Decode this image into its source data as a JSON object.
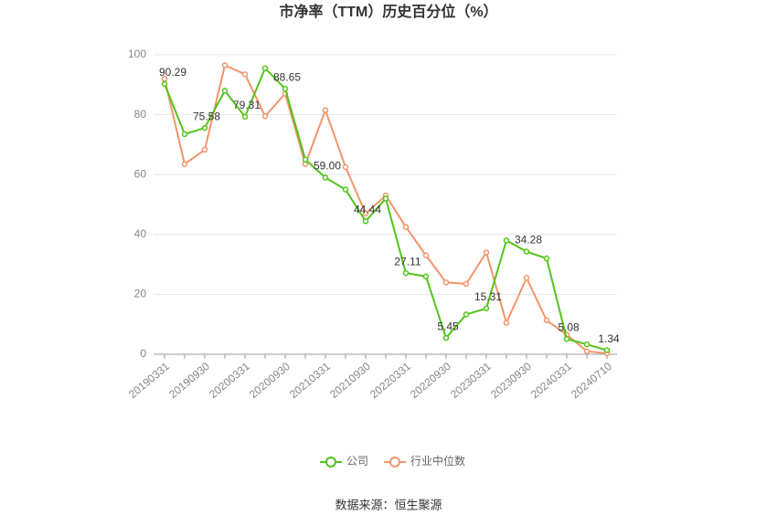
{
  "chart_data": {
    "type": "line",
    "title": "市净率（TTM）历史百分位（%）",
    "source": "数据来源：恒生聚源",
    "categories": [
      "20190331",
      null,
      "20190930",
      null,
      "20200331",
      null,
      "20200930",
      null,
      "20210331",
      null,
      "20210930",
      null,
      "20220331",
      null,
      "20220930",
      null,
      "20230331",
      null,
      "20230930",
      null,
      "20240331",
      null,
      "20240710"
    ],
    "series": [
      {
        "name": "公司",
        "color": "#52c41a",
        "values": [
          90.29,
          73.5,
          75.58,
          88,
          79.31,
          95.5,
          88.65,
          65,
          59,
          55,
          44.44,
          52,
          27.11,
          26,
          5.45,
          13.3,
          15.31,
          38,
          34.28,
          32,
          5.08,
          3.3,
          1.34
        ],
        "value_labels": [
          "90.29",
          null,
          "75.58",
          null,
          "79.31",
          null,
          "88.65",
          null,
          "59.00",
          null,
          "44.44",
          null,
          "27.11",
          null,
          "5.45",
          null,
          "15.31",
          null,
          "34.28",
          null,
          "5.08",
          null,
          "1.34"
        ]
      },
      {
        "name": "行业中位数",
        "color": "#f4946b",
        "values": [
          92,
          63.5,
          68.3,
          96.5,
          93.5,
          79.5,
          87,
          63.5,
          81.5,
          62.5,
          47,
          53,
          42.5,
          33,
          24,
          23.5,
          34,
          10.5,
          25.5,
          11.3,
          6.5,
          1,
          0.3
        ]
      }
    ],
    "ylim": [
      0,
      100
    ],
    "yticks": [
      0,
      20,
      40,
      60,
      80,
      100
    ],
    "grid": true
  }
}
